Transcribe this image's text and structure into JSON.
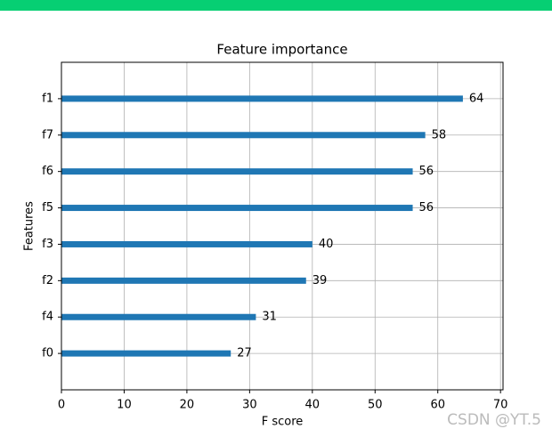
{
  "chart_data": {
    "type": "barh",
    "title": "Feature importance",
    "xlabel": "F score",
    "ylabel": "Features",
    "categories": [
      "f0",
      "f4",
      "f2",
      "f3",
      "f5",
      "f6",
      "f7",
      "f1"
    ],
    "values": [
      27,
      31,
      39,
      40,
      56,
      56,
      58,
      64
    ],
    "color": "#1f77b4",
    "xlim": [
      0,
      70.4
    ],
    "xticks": [
      0,
      10,
      20,
      30,
      40,
      50,
      60,
      70
    ],
    "grid": true,
    "watermark": "CSDN @YT.5"
  }
}
